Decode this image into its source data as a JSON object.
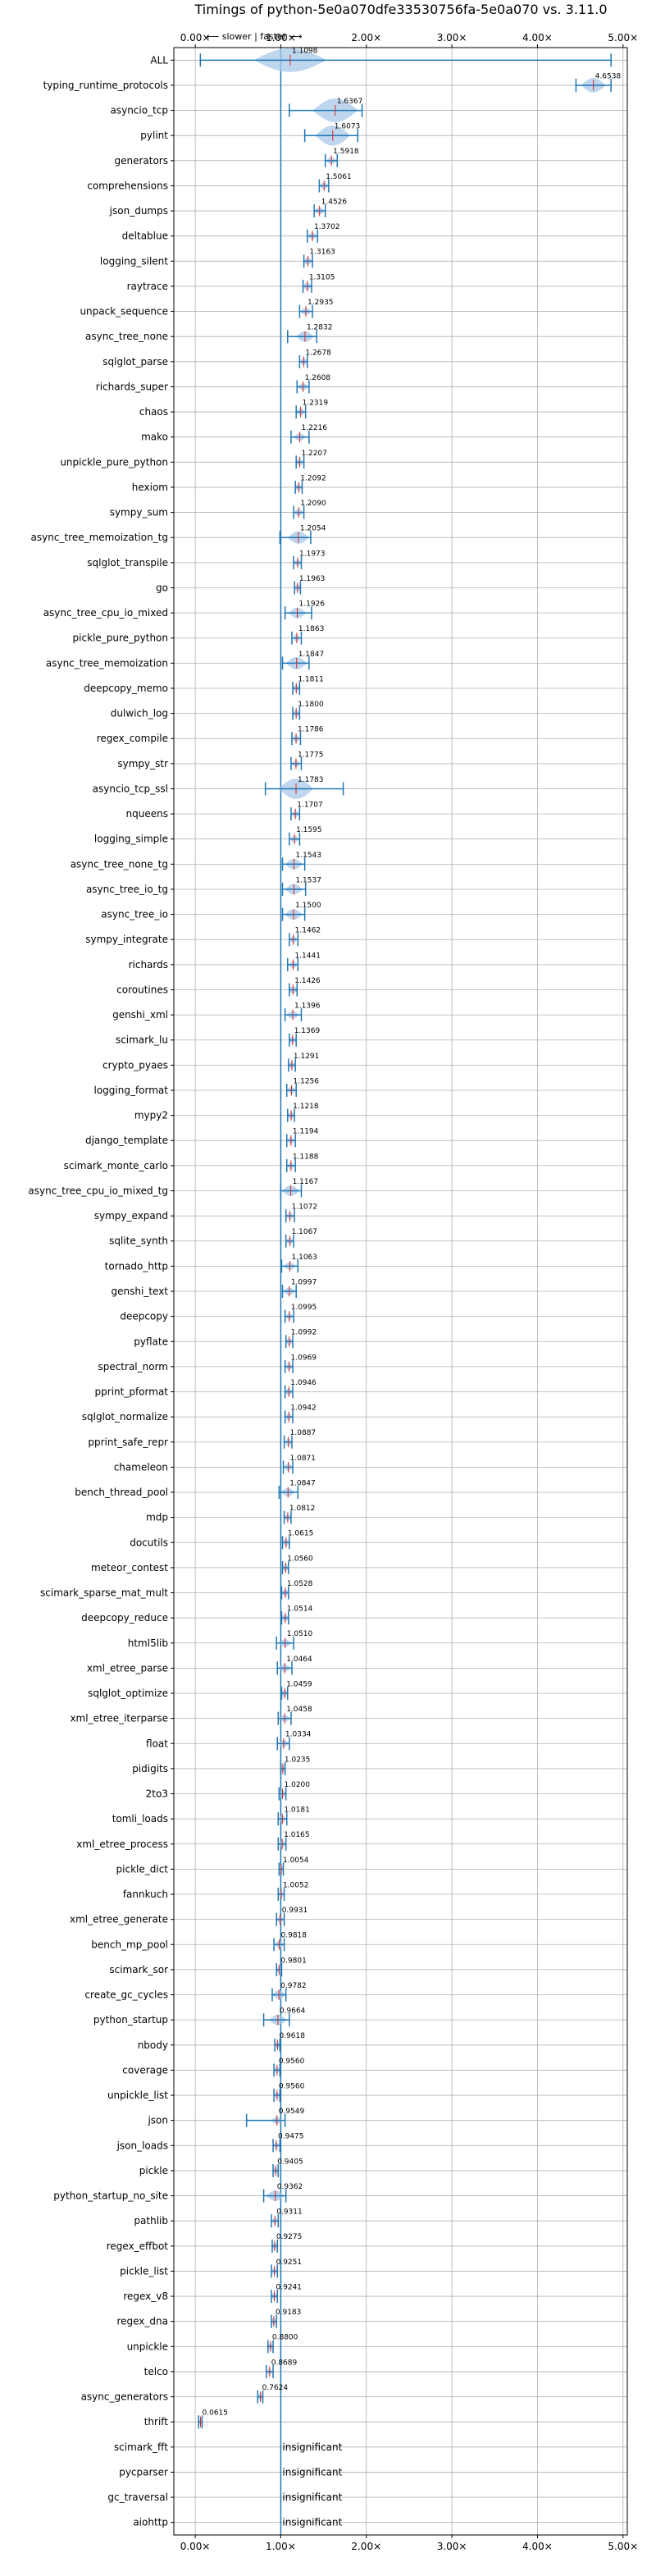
{
  "chart_data": {
    "type": "violin",
    "title": "Timings of python-5e0a070dfe33530756fa-5e0a070 vs. 3.11.0",
    "subtitle": "⟵ slower | faster ⟶",
    "x_ticks": [
      "0.00×",
      "1.00×",
      "2.00×",
      "3.00×",
      "4.00×",
      "5.00×"
    ],
    "x_tick_values": [
      0,
      1,
      2,
      3,
      4,
      5
    ],
    "xlim": [
      -0.25,
      5.05
    ],
    "reference_line": 1.0,
    "grid": true,
    "insignificant_label": "insignificant",
    "colors": {
      "violin": "#a8c8e8",
      "line": "#1f77b4",
      "median": "#d62728",
      "grid": "#b0b0b0"
    },
    "benchmarks": [
      {
        "name": "ALL",
        "label": "1.1098",
        "mean": 1.1098,
        "min": 0.06,
        "max": 4.86,
        "spread": 0.42
      },
      {
        "name": "typing_runtime_protocols",
        "label": "4.6538",
        "mean": 4.6538,
        "min": 4.45,
        "max": 4.86,
        "spread": 0.14
      },
      {
        "name": "asyncio_tcp",
        "label": "1.6367",
        "mean": 1.6367,
        "min": 1.1,
        "max": 1.95,
        "spread": 0.26
      },
      {
        "name": "pylint",
        "label": "1.6073",
        "mean": 1.6073,
        "min": 1.28,
        "max": 1.9,
        "spread": 0.2
      },
      {
        "name": "generators",
        "label": "1.5918",
        "mean": 1.5918,
        "min": 1.52,
        "max": 1.66,
        "spread": 0.06
      },
      {
        "name": "comprehensions",
        "label": "1.5061",
        "mean": 1.5061,
        "min": 1.45,
        "max": 1.56,
        "spread": 0.05
      },
      {
        "name": "json_dumps",
        "label": "1.4526",
        "mean": 1.4526,
        "min": 1.39,
        "max": 1.52,
        "spread": 0.06
      },
      {
        "name": "deltablue",
        "label": "1.3702",
        "mean": 1.3702,
        "min": 1.31,
        "max": 1.43,
        "spread": 0.05
      },
      {
        "name": "logging_silent",
        "label": "1.3163",
        "mean": 1.3163,
        "min": 1.27,
        "max": 1.37,
        "spread": 0.05
      },
      {
        "name": "raytrace",
        "label": "1.3105",
        "mean": 1.3105,
        "min": 1.26,
        "max": 1.36,
        "spread": 0.05
      },
      {
        "name": "unpack_sequence",
        "label": "1.2935",
        "mean": 1.2935,
        "min": 1.22,
        "max": 1.37,
        "spread": 0.06
      },
      {
        "name": "async_tree_none",
        "label": "1.2832",
        "mean": 1.2832,
        "min": 1.08,
        "max": 1.42,
        "spread": 0.1
      },
      {
        "name": "sqlglot_parse",
        "label": "1.2678",
        "mean": 1.2678,
        "min": 1.22,
        "max": 1.31,
        "spread": 0.04
      },
      {
        "name": "richards_super",
        "label": "1.2608",
        "mean": 1.2608,
        "min": 1.19,
        "max": 1.33,
        "spread": 0.06
      },
      {
        "name": "chaos",
        "label": "1.2319",
        "mean": 1.2319,
        "min": 1.18,
        "max": 1.29,
        "spread": 0.05
      },
      {
        "name": "mako",
        "label": "1.2216",
        "mean": 1.2216,
        "min": 1.12,
        "max": 1.33,
        "spread": 0.07
      },
      {
        "name": "unpickle_pure_python",
        "label": "1.2207",
        "mean": 1.2207,
        "min": 1.18,
        "max": 1.27,
        "spread": 0.04
      },
      {
        "name": "hexiom",
        "label": "1.2092",
        "mean": 1.2092,
        "min": 1.17,
        "max": 1.25,
        "spread": 0.04
      },
      {
        "name": "sympy_sum",
        "label": "1.2090",
        "mean": 1.209,
        "min": 1.15,
        "max": 1.27,
        "spread": 0.05
      },
      {
        "name": "async_tree_memoization_tg",
        "label": "1.2054",
        "mean": 1.2054,
        "min": 0.99,
        "max": 1.35,
        "spread": 0.12
      },
      {
        "name": "sqlglot_transpile",
        "label": "1.1973",
        "mean": 1.1973,
        "min": 1.15,
        "max": 1.24,
        "spread": 0.04
      },
      {
        "name": "go",
        "label": "1.1963",
        "mean": 1.1963,
        "min": 1.16,
        "max": 1.23,
        "spread": 0.04
      },
      {
        "name": "async_tree_cpu_io_mixed",
        "label": "1.1926",
        "mean": 1.1926,
        "min": 1.05,
        "max": 1.36,
        "spread": 0.1
      },
      {
        "name": "pickle_pure_python",
        "label": "1.1863",
        "mean": 1.1863,
        "min": 1.13,
        "max": 1.24,
        "spread": 0.04
      },
      {
        "name": "async_tree_memoization",
        "label": "1.1847",
        "mean": 1.1847,
        "min": 1.02,
        "max": 1.33,
        "spread": 0.12
      },
      {
        "name": "deepcopy_memo",
        "label": "1.1811",
        "mean": 1.1811,
        "min": 1.14,
        "max": 1.22,
        "spread": 0.04
      },
      {
        "name": "dulwich_log",
        "label": "1.1800",
        "mean": 1.18,
        "min": 1.14,
        "max": 1.22,
        "spread": 0.04
      },
      {
        "name": "regex_compile",
        "label": "1.1786",
        "mean": 1.1786,
        "min": 1.13,
        "max": 1.23,
        "spread": 0.04
      },
      {
        "name": "sympy_str",
        "label": "1.1775",
        "mean": 1.1775,
        "min": 1.12,
        "max": 1.24,
        "spread": 0.05
      },
      {
        "name": "asyncio_tcp_ssl",
        "label": "1.1783",
        "mean": 1.1783,
        "min": 0.82,
        "max": 1.73,
        "spread": 0.2
      },
      {
        "name": "nqueens",
        "label": "1.1707",
        "mean": 1.1707,
        "min": 1.12,
        "max": 1.22,
        "spread": 0.04
      },
      {
        "name": "logging_simple",
        "label": "1.1595",
        "mean": 1.1595,
        "min": 1.1,
        "max": 1.22,
        "spread": 0.05
      },
      {
        "name": "async_tree_none_tg",
        "label": "1.1543",
        "mean": 1.1543,
        "min": 1.02,
        "max": 1.28,
        "spread": 0.1
      },
      {
        "name": "async_tree_io_tg",
        "label": "1.1537",
        "mean": 1.1537,
        "min": 1.02,
        "max": 1.29,
        "spread": 0.1
      },
      {
        "name": "async_tree_io",
        "label": "1.1500",
        "mean": 1.15,
        "min": 1.02,
        "max": 1.28,
        "spread": 0.1
      },
      {
        "name": "sympy_integrate",
        "label": "1.1462",
        "mean": 1.1462,
        "min": 1.1,
        "max": 1.2,
        "spread": 0.04
      },
      {
        "name": "richards",
        "label": "1.1441",
        "mean": 1.1441,
        "min": 1.08,
        "max": 1.2,
        "spread": 0.05
      },
      {
        "name": "coroutines",
        "label": "1.1426",
        "mean": 1.1426,
        "min": 1.1,
        "max": 1.19,
        "spread": 0.06
      },
      {
        "name": "genshi_xml",
        "label": "1.1396",
        "mean": 1.1396,
        "min": 1.05,
        "max": 1.24,
        "spread": 0.07
      },
      {
        "name": "scimark_lu",
        "label": "1.1369",
        "mean": 1.1369,
        "min": 1.1,
        "max": 1.18,
        "spread": 0.04
      },
      {
        "name": "crypto_pyaes",
        "label": "1.1291",
        "mean": 1.1291,
        "min": 1.09,
        "max": 1.17,
        "spread": 0.04
      },
      {
        "name": "logging_format",
        "label": "1.1256",
        "mean": 1.1256,
        "min": 1.07,
        "max": 1.18,
        "spread": 0.05
      },
      {
        "name": "mypy2",
        "label": "1.1218",
        "mean": 1.1218,
        "min": 1.08,
        "max": 1.16,
        "spread": 0.04
      },
      {
        "name": "django_template",
        "label": "1.1194",
        "mean": 1.1194,
        "min": 1.07,
        "max": 1.17,
        "spread": 0.04
      },
      {
        "name": "scimark_monte_carlo",
        "label": "1.1188",
        "mean": 1.1188,
        "min": 1.07,
        "max": 1.17,
        "spread": 0.04
      },
      {
        "name": "async_tree_cpu_io_mixed_tg",
        "label": "1.1167",
        "mean": 1.1167,
        "min": 1.0,
        "max": 1.24,
        "spread": 0.1
      },
      {
        "name": "sympy_expand",
        "label": "1.1072",
        "mean": 1.1072,
        "min": 1.06,
        "max": 1.16,
        "spread": 0.04
      },
      {
        "name": "sqlite_synth",
        "label": "1.1067",
        "mean": 1.1067,
        "min": 1.06,
        "max": 1.15,
        "spread": 0.04
      },
      {
        "name": "tornado_http",
        "label": "1.1063",
        "mean": 1.1063,
        "min": 1.01,
        "max": 1.2,
        "spread": 0.07
      },
      {
        "name": "genshi_text",
        "label": "1.0997",
        "mean": 1.0997,
        "min": 1.02,
        "max": 1.18,
        "spread": 0.07
      },
      {
        "name": "deepcopy",
        "label": "1.0995",
        "mean": 1.0995,
        "min": 1.05,
        "max": 1.15,
        "spread": 0.04
      },
      {
        "name": "pyflate",
        "label": "1.0992",
        "mean": 1.0992,
        "min": 1.06,
        "max": 1.14,
        "spread": 0.04
      },
      {
        "name": "spectral_norm",
        "label": "1.0969",
        "mean": 1.0969,
        "min": 1.05,
        "max": 1.14,
        "spread": 0.04
      },
      {
        "name": "pprint_pformat",
        "label": "1.0946",
        "mean": 1.0946,
        "min": 1.05,
        "max": 1.14,
        "spread": 0.04
      },
      {
        "name": "sqlglot_normalize",
        "label": "1.0942",
        "mean": 1.0942,
        "min": 1.05,
        "max": 1.14,
        "spread": 0.04
      },
      {
        "name": "pprint_safe_repr",
        "label": "1.0887",
        "mean": 1.0887,
        "min": 1.04,
        "max": 1.13,
        "spread": 0.04
      },
      {
        "name": "chameleon",
        "label": "1.0871",
        "mean": 1.0871,
        "min": 1.03,
        "max": 1.14,
        "spread": 0.05
      },
      {
        "name": "bench_thread_pool",
        "label": "1.0847",
        "mean": 1.0847,
        "min": 0.98,
        "max": 1.2,
        "spread": 0.08
      },
      {
        "name": "mdp",
        "label": "1.0812",
        "mean": 1.0812,
        "min": 1.04,
        "max": 1.12,
        "spread": 0.04
      },
      {
        "name": "docutils",
        "label": "1.0615",
        "mean": 1.0615,
        "min": 1.02,
        "max": 1.1,
        "spread": 0.04
      },
      {
        "name": "meteor_contest",
        "label": "1.0560",
        "mean": 1.056,
        "min": 1.02,
        "max": 1.09,
        "spread": 0.04
      },
      {
        "name": "scimark_sparse_mat_mult",
        "label": "1.0528",
        "mean": 1.0528,
        "min": 1.01,
        "max": 1.09,
        "spread": 0.04
      },
      {
        "name": "deepcopy_reduce",
        "label": "1.0514",
        "mean": 1.0514,
        "min": 1.01,
        "max": 1.09,
        "spread": 0.04
      },
      {
        "name": "html5lib",
        "label": "1.0510",
        "mean": 1.051,
        "min": 0.95,
        "max": 1.15,
        "spread": 0.07
      },
      {
        "name": "xml_etree_parse",
        "label": "1.0464",
        "mean": 1.0464,
        "min": 0.96,
        "max": 1.13,
        "spread": 0.07
      },
      {
        "name": "sqlglot_optimize",
        "label": "1.0459",
        "mean": 1.0459,
        "min": 1.01,
        "max": 1.08,
        "spread": 0.04
      },
      {
        "name": "xml_etree_iterparse",
        "label": "1.0458",
        "mean": 1.0458,
        "min": 0.97,
        "max": 1.12,
        "spread": 0.06
      },
      {
        "name": "float",
        "label": "1.0334",
        "mean": 1.0334,
        "min": 0.96,
        "max": 1.1,
        "spread": 0.06
      },
      {
        "name": "pidigits",
        "label": "1.0235",
        "mean": 1.0235,
        "min": 1.0,
        "max": 1.05,
        "spread": 0.03
      },
      {
        "name": "2to3",
        "label": "1.0200",
        "mean": 1.02,
        "min": 0.98,
        "max": 1.06,
        "spread": 0.04
      },
      {
        "name": "tomli_loads",
        "label": "1.0181",
        "mean": 1.0181,
        "min": 0.97,
        "max": 1.07,
        "spread": 0.04
      },
      {
        "name": "xml_etree_process",
        "label": "1.0165",
        "mean": 1.0165,
        "min": 0.97,
        "max": 1.06,
        "spread": 0.04
      },
      {
        "name": "pickle_dict",
        "label": "1.0054",
        "mean": 1.0054,
        "min": 0.98,
        "max": 1.03,
        "spread": 0.03
      },
      {
        "name": "fannkuch",
        "label": "1.0052",
        "mean": 1.0052,
        "min": 0.97,
        "max": 1.04,
        "spread": 0.03
      },
      {
        "name": "xml_etree_generate",
        "label": "0.9931",
        "mean": 0.9931,
        "min": 0.95,
        "max": 1.04,
        "spread": 0.04
      },
      {
        "name": "bench_mp_pool",
        "label": "0.9818",
        "mean": 0.9818,
        "min": 0.92,
        "max": 1.04,
        "spread": 0.05
      },
      {
        "name": "scimark_sor",
        "label": "0.9801",
        "mean": 0.9801,
        "min": 0.95,
        "max": 1.01,
        "spread": 0.03
      },
      {
        "name": "create_gc_cycles",
        "label": "0.9782",
        "mean": 0.9782,
        "min": 0.9,
        "max": 1.06,
        "spread": 0.08
      },
      {
        "name": "python_startup",
        "label": "0.9664",
        "mean": 0.9664,
        "min": 0.8,
        "max": 1.1,
        "spread": 0.1
      },
      {
        "name": "nbody",
        "label": "0.9618",
        "mean": 0.9618,
        "min": 0.93,
        "max": 0.99,
        "spread": 0.03
      },
      {
        "name": "coverage",
        "label": "0.9560",
        "mean": 0.956,
        "min": 0.92,
        "max": 0.99,
        "spread": 0.03
      },
      {
        "name": "unpickle_list",
        "label": "0.9560",
        "mean": 0.956,
        "min": 0.92,
        "max": 0.99,
        "spread": 0.03
      },
      {
        "name": "json",
        "label": "0.9549",
        "mean": 0.9549,
        "min": 0.6,
        "max": 1.05,
        "spread": 0.06
      },
      {
        "name": "json_loads",
        "label": "0.9475",
        "mean": 0.9475,
        "min": 0.91,
        "max": 0.99,
        "spread": 0.03
      },
      {
        "name": "pickle",
        "label": "0.9405",
        "mean": 0.9405,
        "min": 0.91,
        "max": 0.97,
        "spread": 0.03
      },
      {
        "name": "python_startup_no_site",
        "label": "0.9362",
        "mean": 0.9362,
        "min": 0.8,
        "max": 1.06,
        "spread": 0.1
      },
      {
        "name": "pathlib",
        "label": "0.9311",
        "mean": 0.9311,
        "min": 0.89,
        "max": 0.97,
        "spread": 0.03
      },
      {
        "name": "regex_effbot",
        "label": "0.9275",
        "mean": 0.9275,
        "min": 0.9,
        "max": 0.96,
        "spread": 0.03
      },
      {
        "name": "pickle_list",
        "label": "0.9251",
        "mean": 0.9251,
        "min": 0.89,
        "max": 0.96,
        "spread": 0.03
      },
      {
        "name": "regex_v8",
        "label": "0.9241",
        "mean": 0.9241,
        "min": 0.89,
        "max": 0.96,
        "spread": 0.03
      },
      {
        "name": "regex_dna",
        "label": "0.9183",
        "mean": 0.9183,
        "min": 0.89,
        "max": 0.95,
        "spread": 0.03
      },
      {
        "name": "unpickle",
        "label": "0.8800",
        "mean": 0.88,
        "min": 0.85,
        "max": 0.91,
        "spread": 0.03
      },
      {
        "name": "telco",
        "label": "0.8689",
        "mean": 0.8689,
        "min": 0.83,
        "max": 0.91,
        "spread": 0.03
      },
      {
        "name": "async_generators",
        "label": "0.7624",
        "mean": 0.7624,
        "min": 0.73,
        "max": 0.79,
        "spread": 0.03
      },
      {
        "name": "thrift",
        "label": "0.0615",
        "mean": 0.0615,
        "min": 0.04,
        "max": 0.08,
        "spread": 0.01
      },
      {
        "name": "scimark_fft",
        "label": "",
        "insignificant": true
      },
      {
        "name": "pycparser",
        "label": "",
        "insignificant": true
      },
      {
        "name": "gc_traversal",
        "label": "",
        "insignificant": true
      },
      {
        "name": "aiohttp",
        "label": "",
        "insignificant": true
      }
    ]
  }
}
